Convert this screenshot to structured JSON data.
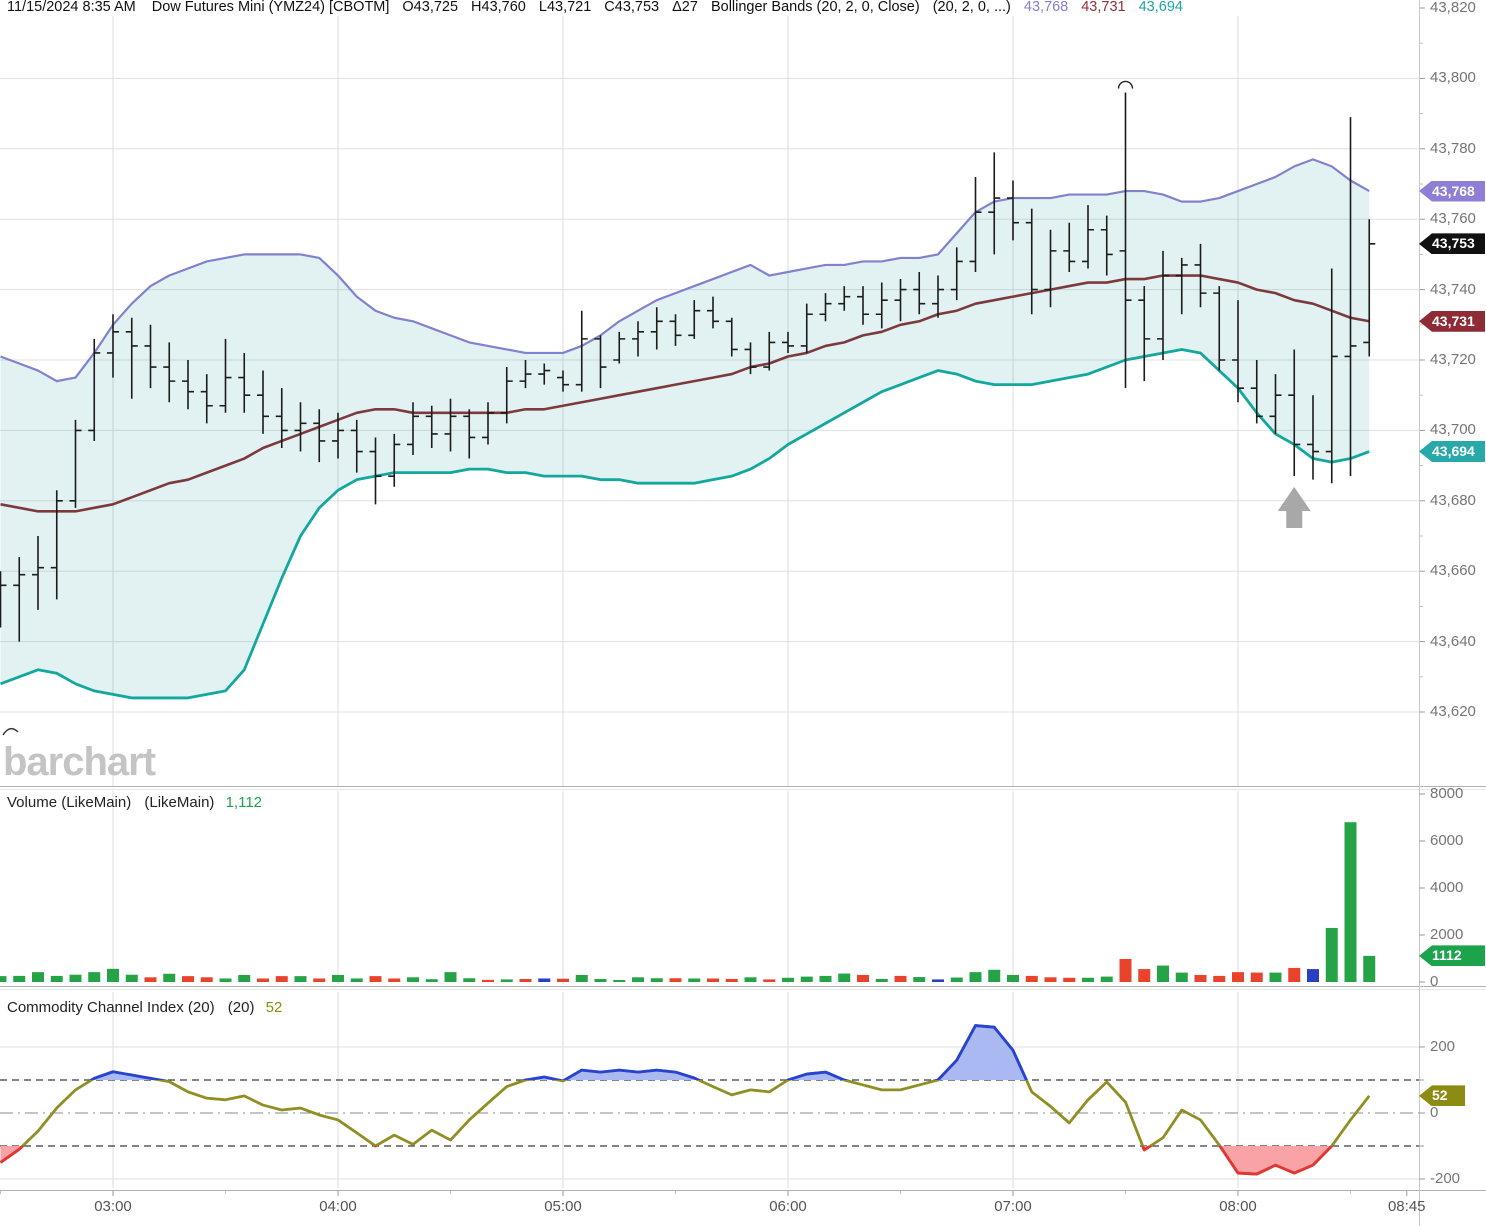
{
  "header": {
    "datetime": "11/15/2024 8:35 AM",
    "symbol": "Dow Futures Mini (YMZ24) [CBOTM]",
    "open": "O43,725",
    "high": "H43,760",
    "low": "L43,721",
    "close": "C43,753",
    "change": "Δ27",
    "study": "Bollinger Bands (20, 2, 0, Close)",
    "study_params": "(20, 2, 0, ...)",
    "bb_upper_value": "43,768",
    "bb_mid_value": "43,731",
    "bb_lower_value": "43,694"
  },
  "watermark": "barchart",
  "panels": {
    "volume": {
      "title": "Volume (LikeMain)",
      "param": "(LikeMain)",
      "value": "1,112",
      "badge": "1112"
    },
    "cci": {
      "title": "Commodity Channel Index (20)",
      "param": "(20)",
      "value": "52",
      "badge": "52"
    }
  },
  "colors": {
    "bb_upper": "#8181cd",
    "bb_mid": "#7d3a3e",
    "bb_lower": "#13a79d",
    "bb_fill": "rgba(32,158,152,0.13)",
    "bar": "#1c1c1c",
    "grid": "#e0e0e0",
    "vgrid": "#dcdcdc",
    "separator": "#b0b0b0",
    "separator2": "#e6e6e6",
    "axis_spine": "#c9c9c9",
    "tick": "#9a9a9a",
    "vol_up": "#27a347",
    "vol_down": "#e8432c",
    "vol_flat": "#2b3fc4",
    "cci_line": "#8f8f23",
    "cci_high_fill": "#aab9f2",
    "cci_high_line": "#2742d6",
    "cci_low_fill": "#f9a3a6",
    "cci_low_line": "#e53434",
    "badge_upper": "#8f7ed6",
    "badge_last": "#111111",
    "badge_mid": "#8e2b36",
    "badge_lower": "#28a8a8",
    "badge_volume": "#1ea34d",
    "badge_cci": "#8c8c14",
    "arrow": "#a8a8a8"
  },
  "chart_data": [
    {
      "type": "ohlc",
      "title": "Dow Futures Mini (YMZ24) 5-minute bars with Bollinger Bands (20,2,0,Close)",
      "time_start": "02:30",
      "interval_minutes": 5,
      "x_labels": [
        "03:00",
        "04:00",
        "05:00",
        "06:00",
        "07:00",
        "08:00",
        "08:45"
      ],
      "ylim": [
        43612,
        43822
      ],
      "y_ticks": [
        {
          "label": "43,820",
          "value": 43820
        },
        {
          "label": "43,800",
          "value": 43800
        },
        {
          "label": "43,780",
          "value": 43780
        },
        {
          "label": "43,760",
          "value": 43760
        },
        {
          "label": "43,740",
          "value": 43740
        },
        {
          "label": "43,720",
          "value": 43720
        },
        {
          "label": "43,700",
          "value": 43700
        },
        {
          "label": "43,680",
          "value": 43680
        },
        {
          "label": "43,660",
          "value": 43660
        },
        {
          "label": "43,640",
          "value": 43640
        },
        {
          "label": "43,620",
          "value": 43620
        }
      ],
      "ohlc": [
        [
          43650,
          43660,
          43644,
          43656
        ],
        [
          43656,
          43664,
          43640,
          43659
        ],
        [
          43659,
          43670,
          43649,
          43661
        ],
        [
          43661,
          43683,
          43652,
          43680
        ],
        [
          43680,
          43703,
          43678,
          43700
        ],
        [
          43700,
          43726,
          43697,
          43722
        ],
        [
          43722,
          43733,
          43715,
          43728
        ],
        [
          43728,
          43732,
          43709,
          43724
        ],
        [
          43724,
          43730,
          43712,
          43718
        ],
        [
          43718,
          43725,
          43708,
          43714
        ],
        [
          43714,
          43720,
          43706,
          43711
        ],
        [
          43711,
          43716,
          43702,
          43707
        ],
        [
          43707,
          43726,
          43705,
          43715
        ],
        [
          43715,
          43722,
          43705,
          43710
        ],
        [
          43710,
          43717,
          43699,
          43704
        ],
        [
          43704,
          43712,
          43695,
          43700
        ],
        [
          43700,
          43708,
          43694,
          43702
        ],
        [
          43702,
          43706,
          43691,
          43697
        ],
        [
          43697,
          43705,
          43692,
          43700
        ],
        [
          43700,
          43703,
          43688,
          43694
        ],
        [
          43694,
          43698,
          43679,
          43687
        ],
        [
          43687,
          43699,
          43684,
          43696
        ],
        [
          43696,
          43708,
          43693,
          43704
        ],
        [
          43704,
          43707,
          43695,
          43699
        ],
        [
          43699,
          43709,
          43694,
          43704
        ],
        [
          43704,
          43706,
          43692,
          43698
        ],
        [
          43698,
          43708,
          43696,
          43705
        ],
        [
          43705,
          43718,
          43702,
          43714
        ],
        [
          43714,
          43720,
          43712,
          43716
        ],
        [
          43716,
          43719,
          43713,
          43717
        ],
        [
          43715,
          43717,
          43711,
          43713
        ],
        [
          43713,
          43734,
          43711,
          43726
        ],
        [
          43726,
          43727,
          43712,
          43718
        ],
        [
          43720,
          43728,
          43719,
          43726
        ],
        [
          43726,
          43731,
          43721,
          43728
        ],
        [
          43728,
          43735,
          43723,
          43731
        ],
        [
          43731,
          43733,
          43724,
          43727
        ],
        [
          43727,
          43737,
          43726,
          43734
        ],
        [
          43734,
          43738,
          43729,
          43731
        ],
        [
          43731,
          43732,
          43721,
          43723
        ],
        [
          43723,
          43725,
          43716,
          43718
        ],
        [
          43718,
          43728,
          43717,
          43725
        ],
        [
          43725,
          43728,
          43722,
          43724
        ],
        [
          43724,
          43736,
          43722,
          43733
        ],
        [
          43733,
          43739,
          43731,
          43736
        ],
        [
          43736,
          43741,
          43734,
          43738
        ],
        [
          43738,
          43741,
          43730,
          43733
        ],
        [
          43733,
          43742,
          43729,
          43737
        ],
        [
          43737,
          43743,
          43731,
          43740
        ],
        [
          43740,
          43745,
          43733,
          43736
        ],
        [
          43736,
          43744,
          43732,
          43740
        ],
        [
          43740,
          43752,
          43737,
          43748
        ],
        [
          43748,
          43772,
          43745,
          43762
        ],
        [
          43762,
          43779,
          43750,
          43766
        ],
        [
          43766,
          43771,
          43754,
          43759
        ],
        [
          43759,
          43763,
          43733,
          43740
        ],
        [
          43740,
          43757,
          43735,
          43751
        ],
        [
          43751,
          43759,
          43745,
          43748
        ],
        [
          43748,
          43764,
          43746,
          43757
        ],
        [
          43757,
          43761,
          43744,
          43750
        ],
        [
          43751,
          43796,
          43712,
          43737
        ],
        [
          43737,
          43741,
          43714,
          43726
        ],
        [
          43726,
          43751,
          43720,
          43744
        ],
        [
          43744,
          43749,
          43733,
          43747
        ],
        [
          43747,
          43753,
          43735,
          43739
        ],
        [
          43739,
          43741,
          43717,
          43720
        ],
        [
          43720,
          43737,
          43708,
          43712
        ],
        [
          43712,
          43720,
          43702,
          43704
        ],
        [
          43704,
          43716,
          43699,
          43710
        ],
        [
          43710,
          43723,
          43687,
          43696
        ],
        [
          43696,
          43710,
          43686,
          43694
        ],
        [
          43694,
          43746,
          43685,
          43721
        ],
        [
          43721,
          43789,
          43687,
          43724
        ],
        [
          43725,
          43760,
          43721,
          43753
        ]
      ],
      "bb_upper": [
        43721,
        43719,
        43717,
        43714,
        43715,
        43722,
        43730,
        43736,
        43741,
        43744,
        43746,
        43748,
        43749,
        43750,
        43750,
        43750,
        43750,
        43749,
        43744,
        43738,
        43734,
        43732,
        43731,
        43729,
        43727,
        43725,
        43724,
        43723,
        43722,
        43722,
        43722,
        43724,
        43727,
        43731,
        43734,
        43737,
        43739,
        43741,
        43743,
        43745,
        43747,
        43744,
        43745,
        43746,
        43747,
        43747,
        43748,
        43748,
        43749,
        43749,
        43750,
        43756,
        43762,
        43765,
        43766,
        43766,
        43766,
        43767,
        43767,
        43767,
        43768,
        43768,
        43767,
        43765,
        43765,
        43766,
        43768,
        43770,
        43772,
        43775,
        43777,
        43775,
        43771,
        43768
      ],
      "bb_mid": [
        43679,
        43678,
        43677,
        43677,
        43677,
        43678,
        43679,
        43681,
        43683,
        43685,
        43686,
        43688,
        43690,
        43692,
        43695,
        43697,
        43699,
        43701,
        43703,
        43705,
        43706,
        43706,
        43705,
        43705,
        43705,
        43705,
        43705,
        43705,
        43706,
        43706,
        43707,
        43708,
        43709,
        43710,
        43711,
        43712,
        43713,
        43714,
        43715,
        43716,
        43718,
        43719,
        43721,
        43722,
        43724,
        43725,
        43727,
        43728,
        43730,
        43731,
        43733,
        43734,
        43736,
        43737,
        43738,
        43739,
        43740,
        43741,
        43742,
        43742,
        43743,
        43743,
        43744,
        43744,
        43744,
        43743,
        43742,
        43740,
        43739,
        43737,
        43736,
        43734,
        43732,
        43731
      ],
      "bb_lower": [
        43628,
        43630,
        43632,
        43631,
        43628,
        43626,
        43625,
        43624,
        43624,
        43624,
        43624,
        43625,
        43626,
        43632,
        43645,
        43658,
        43670,
        43678,
        43683,
        43686,
        43687,
        43688,
        43688,
        43688,
        43688,
        43689,
        43689,
        43688,
        43688,
        43687,
        43687,
        43687,
        43686,
        43686,
        43685,
        43685,
        43685,
        43685,
        43686,
        43687,
        43689,
        43692,
        43696,
        43699,
        43702,
        43705,
        43708,
        43711,
        43713,
        43715,
        43717,
        43716,
        43714,
        43713,
        43713,
        43713,
        43714,
        43715,
        43716,
        43718,
        43720,
        43721,
        43722,
        43723,
        43722,
        43717,
        43712,
        43705,
        43699,
        43696,
        43692,
        43691,
        43692,
        43694
      ],
      "badges": [
        {
          "label": "43,768",
          "value": 43768,
          "color_key": "badge_upper"
        },
        {
          "label": "43,753",
          "value": 43753,
          "color_key": "badge_last"
        },
        {
          "label": "43,731",
          "value": 43731,
          "color_key": "badge_mid"
        },
        {
          "label": "43,694",
          "value": 43694,
          "color_key": "badge_lower"
        }
      ],
      "annotations": {
        "arrow_up": {
          "time": "08:15",
          "label": "buy-signal-arrow"
        },
        "arc_marker": {
          "time": "07:30",
          "price": 43796
        }
      }
    },
    {
      "type": "bar",
      "title": "Volume (LikeMain)",
      "current": 1112,
      "y_ticks": [
        {
          "label": "8000",
          "value": 8000
        },
        {
          "label": "6000",
          "value": 6000
        },
        {
          "label": "4000",
          "value": 4000
        },
        {
          "label": "2000",
          "value": 2000
        },
        {
          "label": "0",
          "value": 0
        }
      ],
      "values": [
        250,
        260,
        420,
        260,
        310,
        420,
        560,
        310,
        200,
        350,
        250,
        200,
        150,
        300,
        150,
        250,
        250,
        150,
        300,
        150,
        250,
        150,
        200,
        120,
        420,
        160,
        90,
        110,
        130,
        150,
        140,
        300,
        130,
        70,
        200,
        160,
        160,
        150,
        150,
        130,
        200,
        110,
        180,
        230,
        260,
        360,
        300,
        130,
        260,
        210,
        110,
        190,
        420,
        520,
        300,
        260,
        200,
        180,
        180,
        230,
        980,
        550,
        700,
        400,
        300,
        260,
        420,
        400,
        400,
        600,
        550,
        2300,
        6800,
        1112
      ],
      "directions": "ggggggggrgrrggrrgrggrrggggrgrbrgggggrgrrgrggggrgrgbggggrrrggrrggrrrrgrbggg"
    },
    {
      "type": "line",
      "title": "Commodity Channel Index (20)",
      "current": 52,
      "y_ticks": [
        {
          "label": "200",
          "value": 200
        },
        {
          "label": "0",
          "value": 0
        },
        {
          "label": "-200",
          "value": -200
        }
      ],
      "thresholds": {
        "upper": 100,
        "lower": -100
      },
      "values": [
        -150,
        -110,
        -55,
        15,
        70,
        105,
        125,
        115,
        105,
        95,
        64,
        45,
        40,
        52,
        24,
        9,
        15,
        -6,
        -21,
        -60,
        -100,
        -67,
        -95,
        -52,
        -82,
        -21,
        30,
        80,
        100,
        109,
        97,
        130,
        124,
        130,
        124,
        130,
        124,
        106,
        80,
        55,
        70,
        64,
        100,
        118,
        124,
        100,
        85,
        70,
        70,
        85,
        100,
        160,
        265,
        260,
        190,
        64,
        20,
        -30,
        40,
        94,
        33,
        -112,
        -75,
        9,
        -21,
        -97,
        -182,
        -185,
        -158,
        -182,
        -158,
        -100,
        -21,
        52
      ]
    }
  ]
}
